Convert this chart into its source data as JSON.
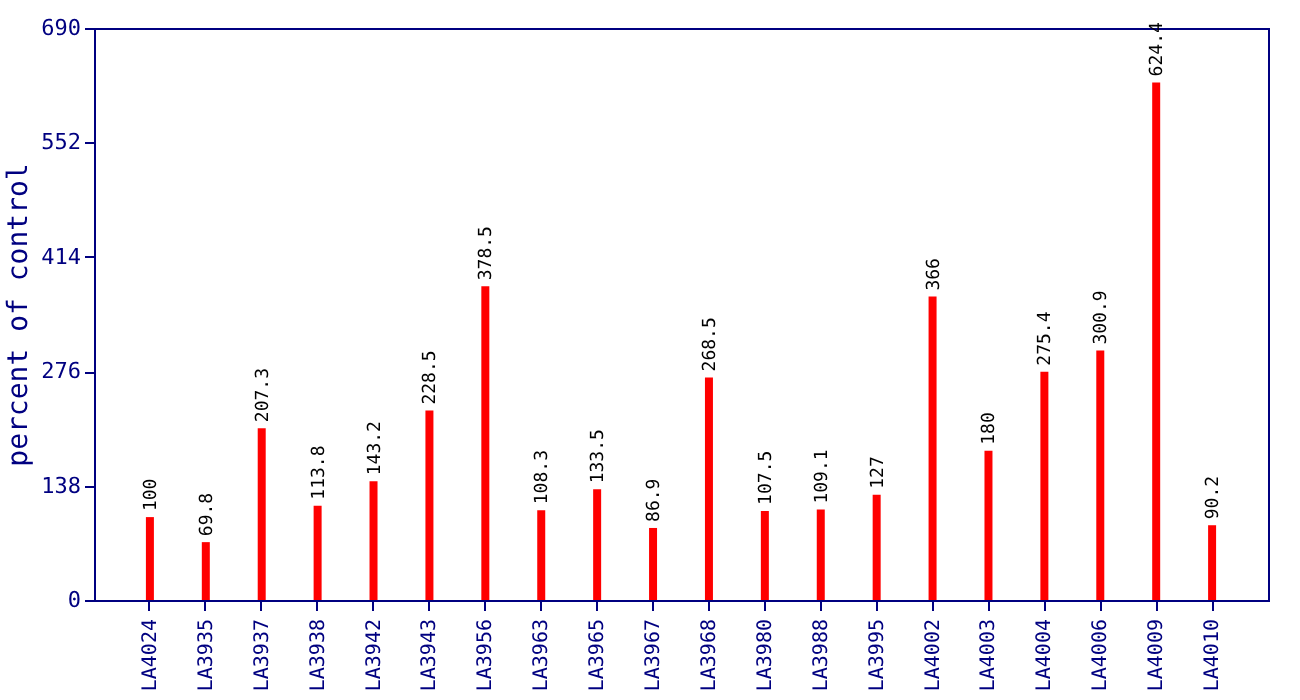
{
  "chart_data": {
    "type": "bar",
    "ylabel": "percent of control",
    "categories": [
      "LA4024",
      "LA3935",
      "LA3937",
      "LA3938",
      "LA3942",
      "LA3943",
      "LA3956",
      "LA3963",
      "LA3965",
      "LA3967",
      "LA3968",
      "LA3980",
      "LA3988",
      "LA3995",
      "LA4002",
      "LA4003",
      "LA4004",
      "LA4006",
      "LA4009",
      "LA4010"
    ],
    "values": [
      100,
      69.8,
      207.3,
      113.8,
      143.2,
      228.5,
      378.5,
      108.3,
      133.5,
      86.9,
      268.5,
      107.5,
      109.1,
      127,
      366,
      180,
      275.4,
      300.9,
      624.4,
      90.2
    ],
    "color": "#ff0000",
    "ylim": [
      0,
      690
    ],
    "yticks": [
      0,
      138,
      276,
      414,
      552,
      690
    ],
    "grid": false,
    "data_labels": true
  }
}
